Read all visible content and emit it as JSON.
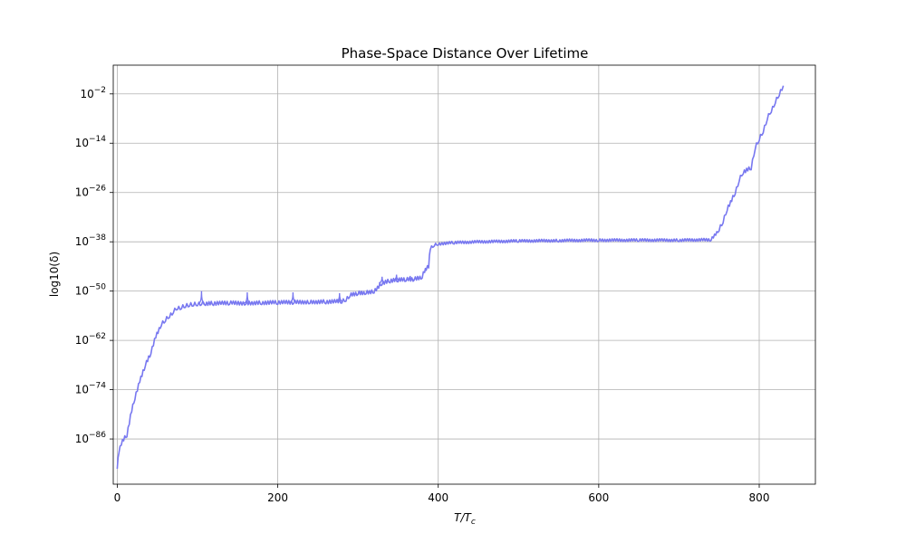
{
  "chart_data": {
    "type": "line",
    "title": "Phase-Space Distance Over Lifetime",
    "xlabel_main": "T/T",
    "xlabel_sub": "c",
    "ylabel": "log10(δ)",
    "xlim": [
      -5,
      870
    ],
    "ylim_exponent": [
      -97,
      5
    ],
    "y_scale": "log",
    "grid": true,
    "x_ticks": [
      0,
      200,
      400,
      600,
      800
    ],
    "y_tick_exponents": [
      -86,
      -74,
      -62,
      -50,
      -38,
      -26,
      -14,
      -2
    ],
    "series": [
      {
        "color": "#7878f0",
        "x": [
          0,
          2,
          5,
          8,
          12,
          18,
          22,
          28,
          35,
          42,
          48,
          55,
          60,
          65,
          70,
          75,
          80,
          85,
          90,
          95,
          100,
          105,
          110,
          120,
          140,
          160,
          180,
          200,
          220,
          240,
          260,
          280,
          285,
          290,
          300,
          310,
          320,
          330,
          340,
          350,
          360,
          370,
          380,
          383,
          385,
          388,
          390,
          395,
          400,
          420,
          450,
          500,
          550,
          600,
          650,
          700,
          740,
          750,
          755,
          760,
          770,
          775,
          780,
          790,
          795,
          800,
          805,
          810,
          815,
          820,
          825,
          830
        ],
        "y_exp": [
          -93,
          -89,
          -87,
          -86,
          -85,
          -79,
          -76,
          -72,
          -68,
          -65,
          -61,
          -58,
          -57,
          -56,
          -55,
          -54,
          -54,
          -53.5,
          -53.3,
          -53.2,
          -53.1,
          -53.0,
          -53.0,
          -53.0,
          -52.9,
          -52.9,
          -52.8,
          -52.8,
          -52.7,
          -52.6,
          -52.6,
          -52.5,
          -52.0,
          -51.0,
          -50.5,
          -50.3,
          -50.0,
          -48.0,
          -47.5,
          -47.3,
          -47.2,
          -47.1,
          -46.5,
          -45.0,
          -44.5,
          -44.0,
          -39.5,
          -38.8,
          -38.5,
          -38.2,
          -38.0,
          -37.8,
          -37.7,
          -37.6,
          -37.6,
          -37.6,
          -37.5,
          -35,
          -33,
          -30,
          -26,
          -23,
          -21,
          -20,
          -15,
          -13,
          -11,
          -8,
          -6,
          -4,
          -2,
          0
        ]
      }
    ],
    "spikes": [
      {
        "x": 105,
        "y_exp": -50
      },
      {
        "x": 162,
        "y_exp": -50.3
      },
      {
        "x": 219,
        "y_exp": -50.3
      },
      {
        "x": 277,
        "y_exp": -50.5
      },
      {
        "x": 330,
        "y_exp": -46.5
      },
      {
        "x": 348,
        "y_exp": -46
      },
      {
        "x": 365,
        "y_exp": -46.3
      }
    ]
  }
}
